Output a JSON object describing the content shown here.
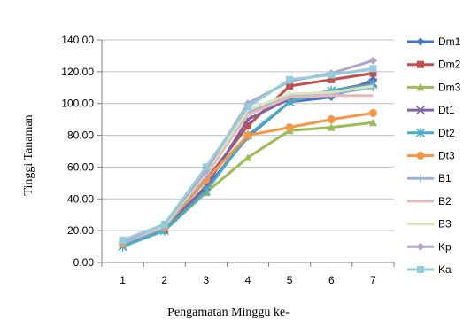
{
  "chart_data": {
    "type": "line",
    "title": "",
    "xlabel": "Pengamatan Minggu ke-",
    "ylabel": "Tinggi Tanaman",
    "categories": [
      "1",
      "2",
      "3",
      "4",
      "5",
      "6",
      "7"
    ],
    "ylim": [
      0,
      140
    ],
    "yticks": [
      "0.00",
      "20.00",
      "40.00",
      "60.00",
      "80.00",
      "100.00",
      "120.00",
      "140.00"
    ],
    "grid": true,
    "legend_position": "right",
    "series": [
      {
        "name": "Dm1",
        "color": "#4472c4",
        "marker": "diamond",
        "values": [
          11,
          21,
          47,
          79,
          101,
          104,
          115
        ]
      },
      {
        "name": "Dm2",
        "color": "#c0504d",
        "marker": "square",
        "values": [
          12,
          22,
          52,
          86,
          111,
          115,
          119
        ]
      },
      {
        "name": "Dm3",
        "color": "#9bbb59",
        "marker": "triangle",
        "values": [
          11,
          20,
          44,
          66,
          83,
          85,
          88
        ]
      },
      {
        "name": "Dt1",
        "color": "#8064a2",
        "marker": "x",
        "values": [
          10,
          21,
          48,
          90,
          103,
          108,
          113
        ]
      },
      {
        "name": "Dt2",
        "color": "#4bacc6",
        "marker": "star",
        "values": [
          10,
          20,
          45,
          80,
          101,
          108,
          112
        ]
      },
      {
        "name": "Dt3",
        "color": "#f79646",
        "marker": "circle",
        "values": [
          12,
          22,
          52,
          80,
          85,
          90,
          94
        ]
      },
      {
        "name": "B1",
        "color": "#95b3d7",
        "marker": "plus",
        "values": [
          12,
          22,
          55,
          94,
          105,
          106,
          110
        ]
      },
      {
        "name": "B2",
        "color": "#e6b9b8",
        "marker": "none",
        "values": [
          13,
          23,
          56,
          93,
          104,
          105,
          105
        ]
      },
      {
        "name": "B3",
        "color": "#d7e4bd",
        "marker": "none",
        "values": [
          13,
          23,
          57,
          96,
          106,
          107,
          111
        ]
      },
      {
        "name": "Kp",
        "color": "#b3a2c7",
        "marker": "diamond",
        "values": [
          13,
          24,
          58,
          100,
          114,
          119,
          127
        ]
      },
      {
        "name": "Ka",
        "color": "#93cddd",
        "marker": "square",
        "values": [
          14,
          24,
          60,
          98,
          115,
          118,
          122
        ]
      }
    ]
  }
}
